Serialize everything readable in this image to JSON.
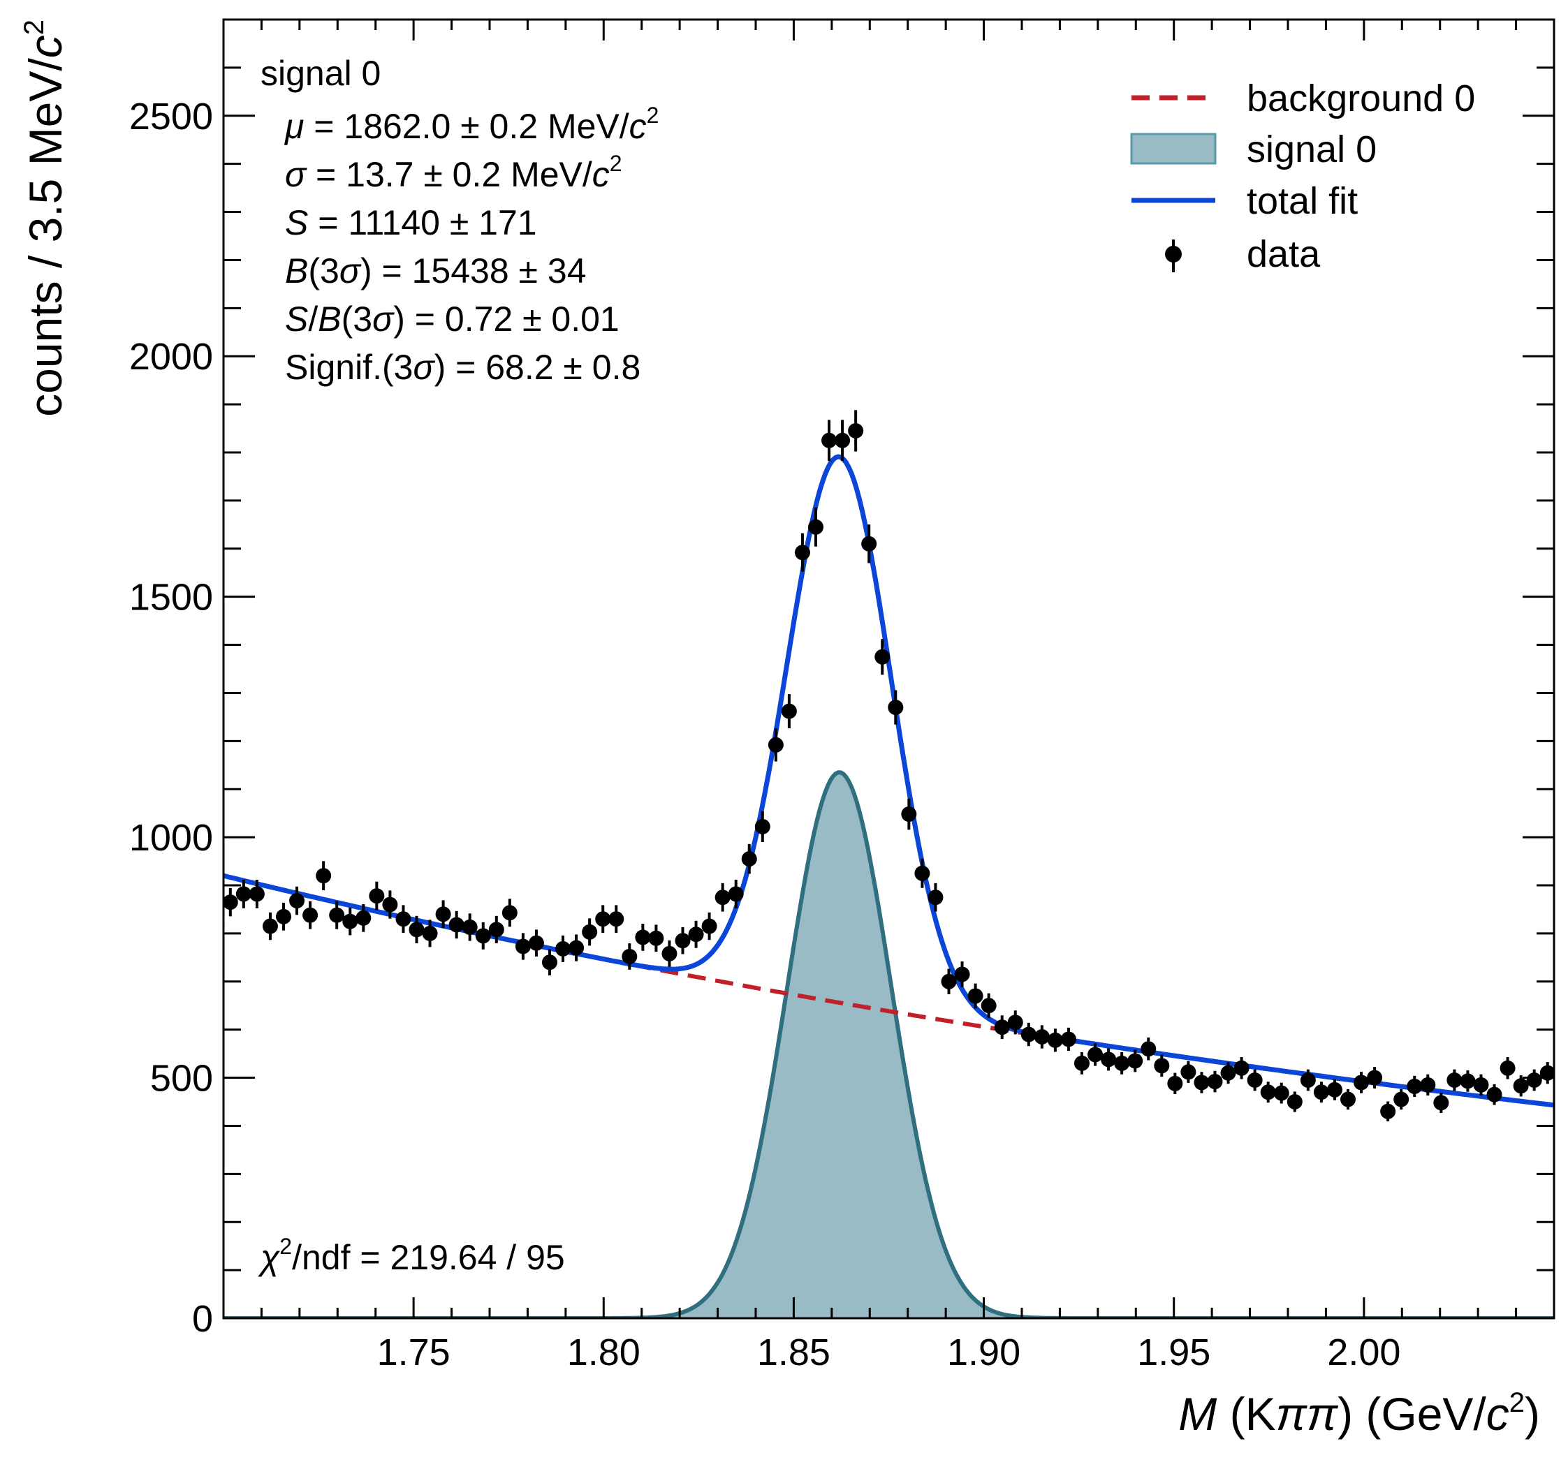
{
  "chart_data": {
    "type": "histogram-fit",
    "xlabel": {
      "var": "M",
      "open": " (K",
      "pi": "ππ",
      "mid": ") (GeV/",
      "c": "c",
      "exp": "2",
      "close": ")"
    },
    "ylabel": {
      "pre": "counts / 3.5 MeV/",
      "c": "c",
      "exp": "2"
    },
    "xlim": [
      1.7,
      2.05
    ],
    "ylim": [
      0,
      2700
    ],
    "x_ticks": [
      {
        "value": 1.75,
        "label": "1.75"
      },
      {
        "value": 1.8,
        "label": "1.80"
      },
      {
        "value": 1.85,
        "label": "1.85"
      },
      {
        "value": 1.9,
        "label": "1.90"
      },
      {
        "value": 1.95,
        "label": "1.95"
      },
      {
        "value": 2.0,
        "label": "2.00"
      }
    ],
    "y_ticks": [
      {
        "value": 0,
        "label": "0"
      },
      {
        "value": 500,
        "label": "500"
      },
      {
        "value": 1000,
        "label": "1000"
      },
      {
        "value": 1500,
        "label": "1500"
      },
      {
        "value": 2000,
        "label": "2000"
      },
      {
        "value": 2500,
        "label": "2500"
      }
    ],
    "annotations": {
      "title": "signal 0",
      "mu": {
        "sym": "μ",
        "text": " = 1862.0 ± 0.2 MeV/",
        "c": "c",
        "exp": "2"
      },
      "sigma": {
        "sym": "σ",
        "text": " = 13.7 ± 0.2 MeV/",
        "c": "c",
        "exp": "2"
      },
      "s": {
        "sym": "S",
        "text": " = 11140 ± 171"
      },
      "b": {
        "sym": "B",
        "open": "(3",
        "sig": "σ",
        "text": ") = 15438 ± 34"
      },
      "sb": {
        "sym": "S",
        "slash": "/",
        "sym2": "B",
        "open": "(3",
        "sig": "σ",
        "text": ") = 0.72 ± 0.01"
      },
      "signif": {
        "pre": "Signif.(3",
        "sig": "σ",
        "text": ") = 68.2 ± 0.8"
      },
      "chi2": {
        "sym": "χ",
        "exp": "2",
        "text": "/ndf = 219.64 / 95"
      }
    },
    "legend": {
      "position": "top-right",
      "entries": [
        {
          "label": "background 0",
          "style": "dashed-line",
          "color": "#c0202a"
        },
        {
          "label": "signal 0",
          "style": "filled-area",
          "color": "#98bbc6"
        },
        {
          "label": "total fit",
          "style": "solid-line",
          "color": "#0b46d8"
        },
        {
          "label": "data",
          "style": "marker-errorbar",
          "color": "#000000"
        }
      ]
    },
    "colors": {
      "background_line": "#c0202a",
      "signal_fill": "#98bbc6",
      "signal_edge": "#2f6f80",
      "total_fit": "#0b46d8",
      "data": "#000000"
    },
    "model": {
      "signal": {
        "mean": 1.862,
        "sigma": 0.0137,
        "peak": 1135
      },
      "background": {
        "type": "exponential",
        "at_1p70": 920,
        "at_2p05": 443
      }
    },
    "series": [
      {
        "name": "data",
        "x": [
          1.7018,
          1.7053,
          1.7088,
          1.7123,
          1.7158,
          1.7193,
          1.7228,
          1.7263,
          1.7298,
          1.7333,
          1.7368,
          1.7403,
          1.7438,
          1.7473,
          1.7508,
          1.7543,
          1.7578,
          1.7613,
          1.7648,
          1.7683,
          1.7718,
          1.7753,
          1.7788,
          1.7823,
          1.7858,
          1.7893,
          1.7928,
          1.7963,
          1.7998,
          1.8033,
          1.8068,
          1.8103,
          1.8138,
          1.8173,
          1.8208,
          1.8243,
          1.8278,
          1.8313,
          1.8348,
          1.8383,
          1.8418,
          1.8453,
          1.8488,
          1.8523,
          1.8558,
          1.8593,
          1.8628,
          1.8663,
          1.8698,
          1.8733,
          1.8768,
          1.8803,
          1.8838,
          1.8873,
          1.8908,
          1.8943,
          1.8978,
          1.9013,
          1.9048,
          1.9083,
          1.9118,
          1.9153,
          1.9188,
          1.9223,
          1.9258,
          1.9293,
          1.9328,
          1.9363,
          1.9398,
          1.9433,
          1.9468,
          1.9503,
          1.9538,
          1.9573,
          1.9608,
          1.9643,
          1.9678,
          1.9713,
          1.9748,
          1.9783,
          1.9818,
          1.9853,
          1.9888,
          1.9923,
          1.9958,
          1.9993,
          2.0028,
          2.0063,
          2.0098,
          2.0133,
          2.0168,
          2.0203,
          2.0238,
          2.0273,
          2.0308,
          2.0343,
          2.0378,
          2.0413,
          2.0448,
          2.0483
        ],
        "y": [
          865,
          882,
          882,
          815,
          835,
          868,
          838,
          920,
          838,
          825,
          832,
          878,
          860,
          830,
          808,
          800,
          840,
          818,
          813,
          795,
          808,
          843,
          773,
          780,
          740,
          768,
          770,
          803,
          830,
          830,
          752,
          792,
          790,
          758,
          785,
          798,
          815,
          875,
          882,
          955,
          1022,
          1192,
          1262,
          1592,
          1645,
          1825,
          1825,
          1845,
          1610,
          1375,
          1270,
          1048,
          925,
          875,
          700,
          715,
          670,
          650,
          605,
          615,
          590,
          585,
          578,
          580,
          530,
          548,
          538,
          530,
          535,
          560,
          525,
          488,
          512,
          490,
          492,
          510,
          520,
          495,
          470,
          468,
          450,
          495,
          470,
          475,
          455,
          490,
          500,
          430,
          455,
          482,
          485,
          448,
          495,
          493,
          485,
          465,
          520,
          483,
          495,
          510
        ]
      }
    ]
  }
}
